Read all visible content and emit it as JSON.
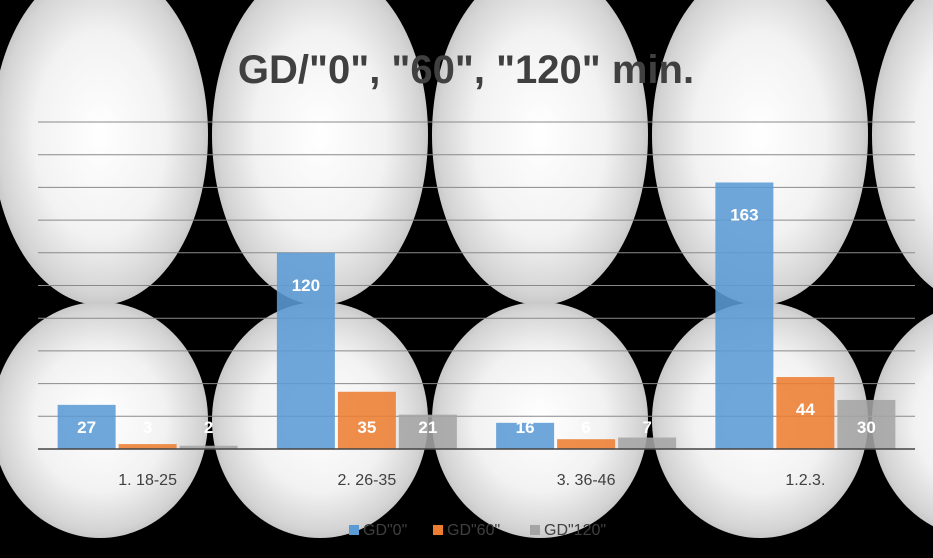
{
  "chart_data": {
    "type": "bar",
    "title": "GD/\"0\", \"60\", \"120\" min.",
    "categories": [
      "1. 18-25",
      "2. 26-35",
      "3. 36-46",
      "1.2.3."
    ],
    "series": [
      {
        "name": "GD\"0\"",
        "values": [
          27,
          120,
          16,
          163
        ],
        "color": "#5B9BD5"
      },
      {
        "name": "GD\"60\"",
        "values": [
          3,
          35,
          6,
          44
        ],
        "color": "#ED7D31"
      },
      {
        "name": "GD\"120\"",
        "values": [
          2,
          21,
          7,
          30
        ],
        "color": "#A5A5A5"
      }
    ],
    "ylim": [
      0,
      200
    ],
    "grid": true,
    "data_labels": true,
    "legend_position": "bottom"
  }
}
